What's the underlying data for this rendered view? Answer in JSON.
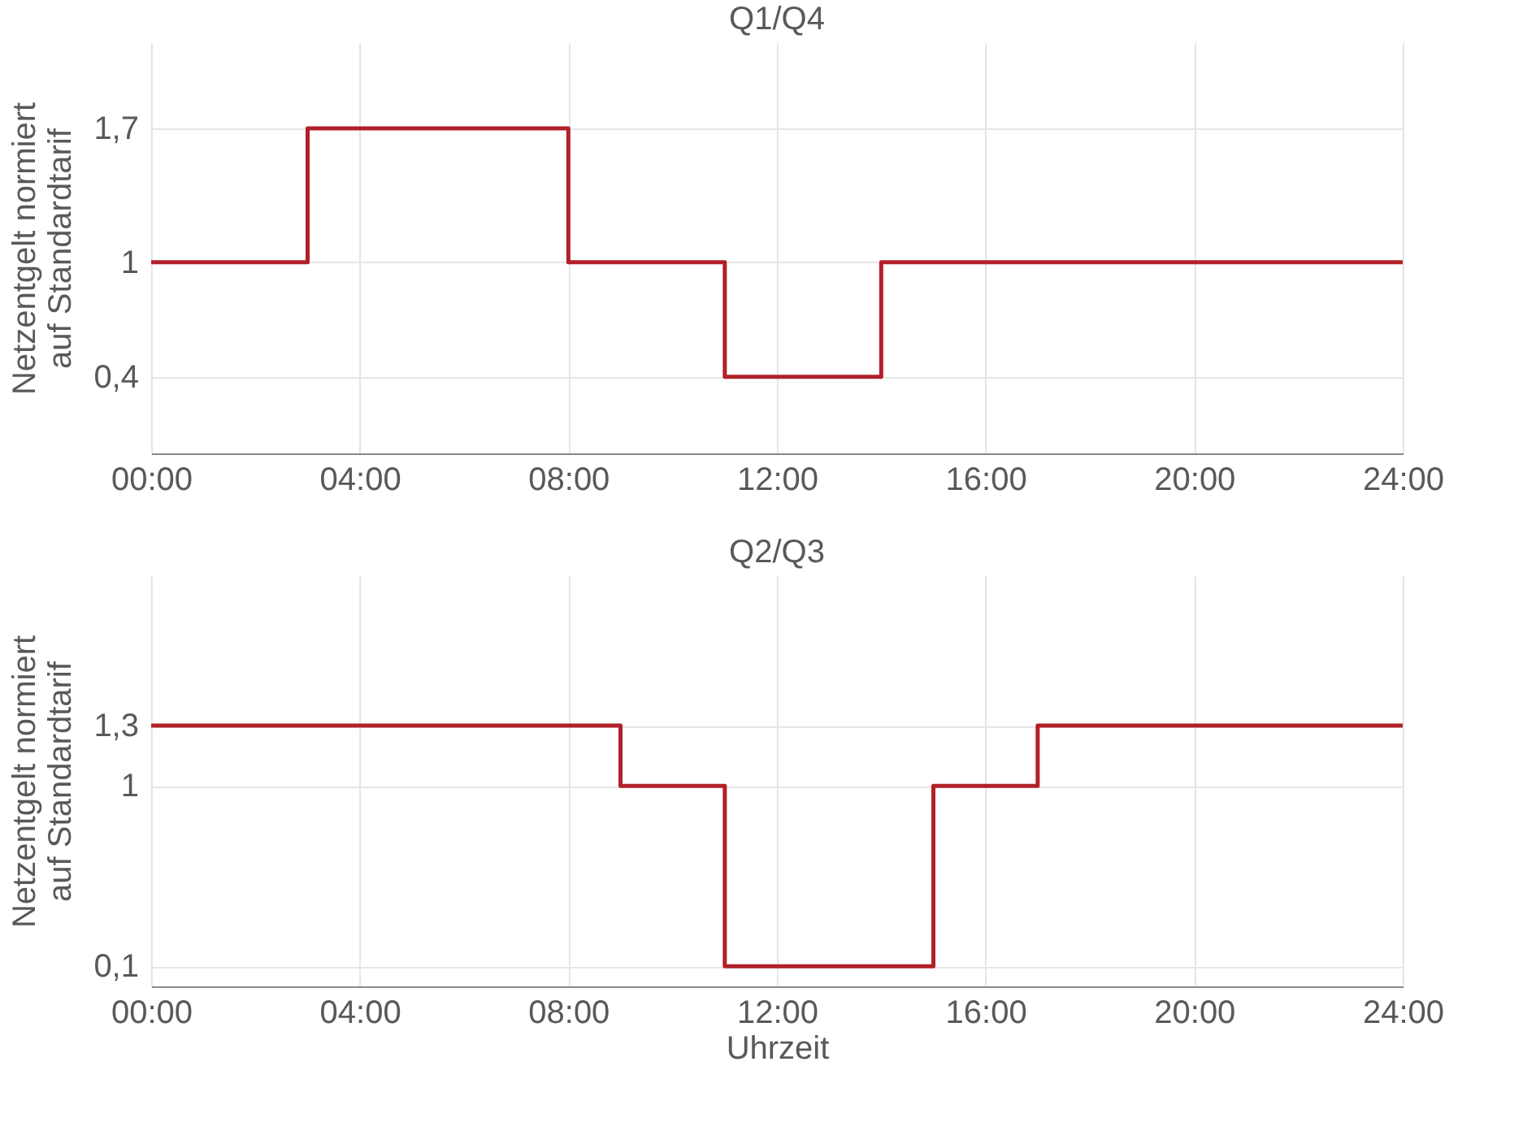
{
  "chart_data": [
    {
      "type": "step",
      "title": "Q1/Q4",
      "ylabel": "Netzentgelt normiert auf Standardtarif",
      "series": [
        {
          "color": "#b22028",
          "x": [
            0,
            3,
            8,
            11,
            14,
            24
          ],
          "values": [
            1,
            1.7,
            1,
            0.4,
            1,
            1
          ]
        }
      ],
      "xlim": [
        0,
        24
      ],
      "xticks": [
        {
          "value": 0,
          "label": "00:00"
        },
        {
          "value": 4,
          "label": "04:00"
        },
        {
          "value": 8,
          "label": "08:00"
        },
        {
          "value": 12,
          "label": "12:00"
        },
        {
          "value": 16,
          "label": "16:00"
        },
        {
          "value": 20,
          "label": "20:00"
        },
        {
          "value": 24,
          "label": "24:00"
        }
      ],
      "ylim": [
        0,
        2.15
      ],
      "yticks": [
        {
          "value": 0.4,
          "label": "0,4"
        },
        {
          "value": 1,
          "label": "1"
        },
        {
          "value": 1.7,
          "label": "1,7"
        }
      ],
      "grid": true,
      "line_style": "solid",
      "marker": "none"
    },
    {
      "type": "step",
      "title": "Q2/Q3",
      "xlabel": "Uhrzeit",
      "ylabel": "Netzentgelt normiert auf Standardtarif",
      "series": [
        {
          "color": "#b22028",
          "x": [
            0,
            9,
            11,
            15,
            17,
            24
          ],
          "values": [
            1.3,
            1,
            0.1,
            1,
            1.3,
            1.3
          ]
        }
      ],
      "xlim": [
        0,
        24
      ],
      "xticks": [
        {
          "value": 0,
          "label": "00:00"
        },
        {
          "value": 4,
          "label": "04:00"
        },
        {
          "value": 8,
          "label": "08:00"
        },
        {
          "value": 12,
          "label": "12:00"
        },
        {
          "value": 16,
          "label": "16:00"
        },
        {
          "value": 20,
          "label": "20:00"
        },
        {
          "value": 24,
          "label": "24:00"
        }
      ],
      "ylim": [
        0,
        2.05
      ],
      "yticks": [
        {
          "value": 0.1,
          "label": "0,1"
        },
        {
          "value": 1,
          "label": "1"
        },
        {
          "value": 1.3,
          "label": "1,3"
        }
      ],
      "grid": true,
      "line_style": "solid",
      "marker": "none"
    }
  ]
}
